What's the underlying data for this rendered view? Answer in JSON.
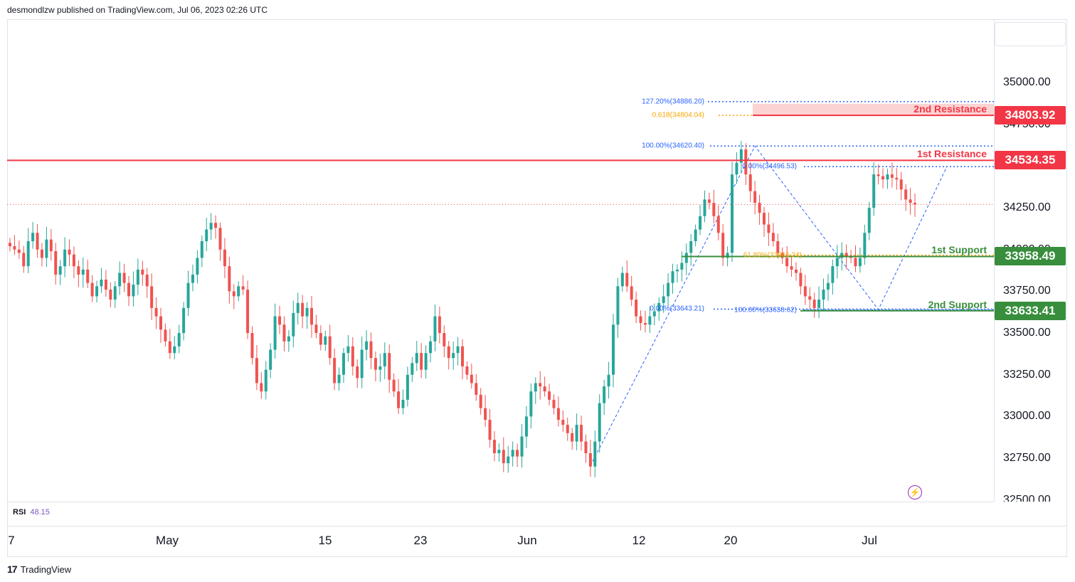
{
  "header": {
    "caption": "desmondlzw published on TradingView.com, Jul 06, 2023 02:26 UTC"
  },
  "footer": {
    "brand": "TradingView",
    "brand_icon": "tradingview-logo-icon"
  },
  "rsi": {
    "label": "RSI",
    "value": "48.15"
  },
  "colors": {
    "up": "#26a69a",
    "down": "#ef5350",
    "resistance": "#f23645",
    "support": "#388e3c",
    "fib_blue": "#2962ff",
    "fib_orange": "#f7a600",
    "zone_fill": "#fcd3d3"
  },
  "chart_data": {
    "type": "candlestick",
    "title": "",
    "x_ticks": [
      "7",
      "May",
      "15",
      "23",
      "Jun",
      "12",
      "20",
      "Jul"
    ],
    "y_ticks": [
      "35000.00",
      "34750.00",
      "34250.00",
      "34000.00",
      "33750.00",
      "33500.00",
      "33250.00",
      "33000.00",
      "32750.00",
      "32500.00"
    ],
    "ylim": [
      32490,
      35380
    ],
    "last_price": 34270,
    "levels": [
      {
        "name": "2nd Resistance",
        "value": 34803.92,
        "label": "34803.92",
        "kind": "resistance"
      },
      {
        "name": "1st Resistance",
        "value": 34534.35,
        "label": "34534.35",
        "kind": "resistance"
      },
      {
        "name": "1st Support",
        "value": 33958.49,
        "label": "33958.49",
        "kind": "support"
      },
      {
        "name": "2nd Support",
        "value": 33633.41,
        "label": "33633.41",
        "kind": "support"
      }
    ],
    "fib_labels": [
      {
        "text": "127.20%(34886.20)",
        "value": 34886.2,
        "color": "blue"
      },
      {
        "text": "0.618(34804.04)",
        "value": 34804.04,
        "color": "orange"
      },
      {
        "text": "100.00%(34620.40)",
        "value": 34620.4,
        "color": "blue"
      },
      {
        "text": "0.00%(34496.53)",
        "value": 34496.53,
        "color": "blue"
      },
      {
        "text": "61.80%(33966.24)",
        "value": 33966.24,
        "color": "orange"
      },
      {
        "text": "0.00%(33643.21)",
        "value": 33643.21,
        "color": "blue"
      },
      {
        "text": "100.00%(33638.62)",
        "value": 33638.62,
        "color": "blue"
      }
    ],
    "path_points": [
      32705,
      34620,
      33640,
      34497
    ],
    "closes": [
      34020,
      34000,
      33980,
      33900,
      34050,
      34100,
      34000,
      33950,
      34060,
      33990,
      33850,
      33900,
      34000,
      33970,
      33900,
      33850,
      33880,
      33800,
      33720,
      33780,
      33820,
      33760,
      33700,
      33780,
      33860,
      33800,
      33720,
      33790,
      33880,
      33850,
      33780,
      33650,
      33600,
      33520,
      33450,
      33380,
      33420,
      33500,
      33650,
      33800,
      33850,
      33950,
      34050,
      34120,
      34160,
      34130,
      34000,
      33900,
      33750,
      33720,
      33780,
      33760,
      33500,
      33350,
      33200,
      33150,
      33280,
      33400,
      33600,
      33550,
      33450,
      33480,
      33620,
      33680,
      33600,
      33650,
      33550,
      33500,
      33430,
      33480,
      33350,
      33200,
      33250,
      33380,
      33420,
      33300,
      33230,
      33400,
      33450,
      33350,
      33280,
      33300,
      33380,
      33220,
      33150,
      33050,
      33100,
      33250,
      33320,
      33380,
      33280,
      33380,
      33450,
      33600,
      33500,
      33420,
      33350,
      33380,
      33420,
      33300,
      33250,
      33200,
      33130,
      33050,
      32980,
      32860,
      32780,
      32800,
      32720,
      32760,
      32800,
      32760,
      32880,
      33000,
      33150,
      33200,
      33180,
      33150,
      33100,
      33050,
      32980,
      32950,
      32900,
      32850,
      32950,
      32850,
      32780,
      32700,
      32850,
      33080,
      33180,
      33250,
      33550,
      33780,
      33860,
      33780,
      33700,
      33600,
      33560,
      33550,
      33600,
      33630,
      33680,
      33720,
      33800,
      33870,
      33880,
      33920,
      33980,
      34050,
      34120,
      34200,
      34300,
      34280,
      34200,
      34100,
      33950,
      33980,
      34450,
      34520,
      34600,
      34450,
      34350,
      34280,
      34220,
      34150,
      34100,
      34050,
      33980,
      33950,
      33900,
      33880,
      33860,
      33780,
      33720,
      33700,
      33650,
      33700,
      33760,
      33800,
      33900,
      33950,
      33980,
      33960,
      33950,
      33900,
      33950,
      34100,
      34250,
      34450,
      34440,
      34420,
      34450,
      34430,
      34420,
      34360,
      34300,
      34280,
      34270
    ]
  }
}
